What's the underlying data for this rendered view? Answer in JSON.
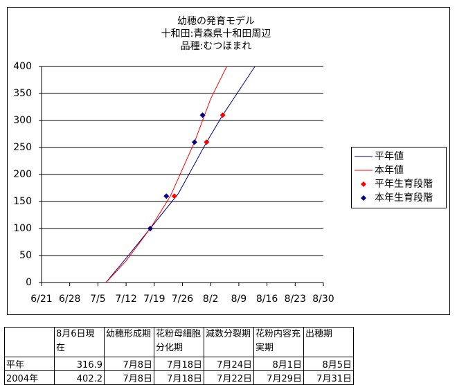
{
  "chart_data": {
    "type": "line",
    "title_lines": [
      "幼穂の発育モデル",
      "十和田:青森県十和田周辺",
      "品種:むつほまれ"
    ],
    "xlim": [
      "6/21",
      "8/30"
    ],
    "xticks": [
      "6/21",
      "6/28",
      "7/5",
      "7/12",
      "7/19",
      "7/26",
      "8/2",
      "8/9",
      "8/16",
      "8/23",
      "8/30"
    ],
    "ylim": [
      0,
      400
    ],
    "yticks": [
      0,
      50,
      100,
      150,
      200,
      250,
      300,
      350,
      400
    ],
    "grid": true,
    "legend": "right",
    "series": [
      {
        "name": "平年値",
        "kind": "line",
        "color": "#000080",
        "x": [
          "7/7",
          "7/12",
          "7/18",
          "7/25",
          "8/1",
          "8/5",
          "8/13"
        ],
        "values": [
          0,
          45,
          100,
          165,
          260,
          310,
          400
        ]
      },
      {
        "name": "本年値",
        "kind": "line",
        "color": "#ff0000",
        "x": [
          "7/7",
          "7/12",
          "7/18",
          "7/23",
          "7/29",
          "8/2",
          "8/6"
        ],
        "values": [
          0,
          40,
          100,
          160,
          260,
          340,
          400
        ]
      },
      {
        "name": "平年生育段階",
        "kind": "scatter",
        "color": "#ff0000",
        "x": [
          "7/18",
          "7/24",
          "8/1",
          "8/5"
        ],
        "values": [
          100,
          160,
          260,
          310
        ]
      },
      {
        "name": "本年生育段階",
        "kind": "scatter",
        "color": "#000080",
        "x": [
          "7/18",
          "7/22",
          "7/29",
          "7/31"
        ],
        "values": [
          100,
          160,
          260,
          310
        ]
      }
    ]
  },
  "table": {
    "header": [
      "8月6日現在",
      "幼穂形成期",
      "花粉母細胞分化期",
      "減数分裂期",
      "花粉内容充実期",
      "出穂期"
    ],
    "rows": [
      [
        "平年",
        316.9,
        "7月8日",
        "7月18日",
        "7月24日",
        "8月1日",
        "8月5日"
      ],
      [
        "2004年",
        402.2,
        "7月8日",
        "7月18日",
        "7月22日",
        "7月29日",
        "7月31日"
      ]
    ]
  }
}
